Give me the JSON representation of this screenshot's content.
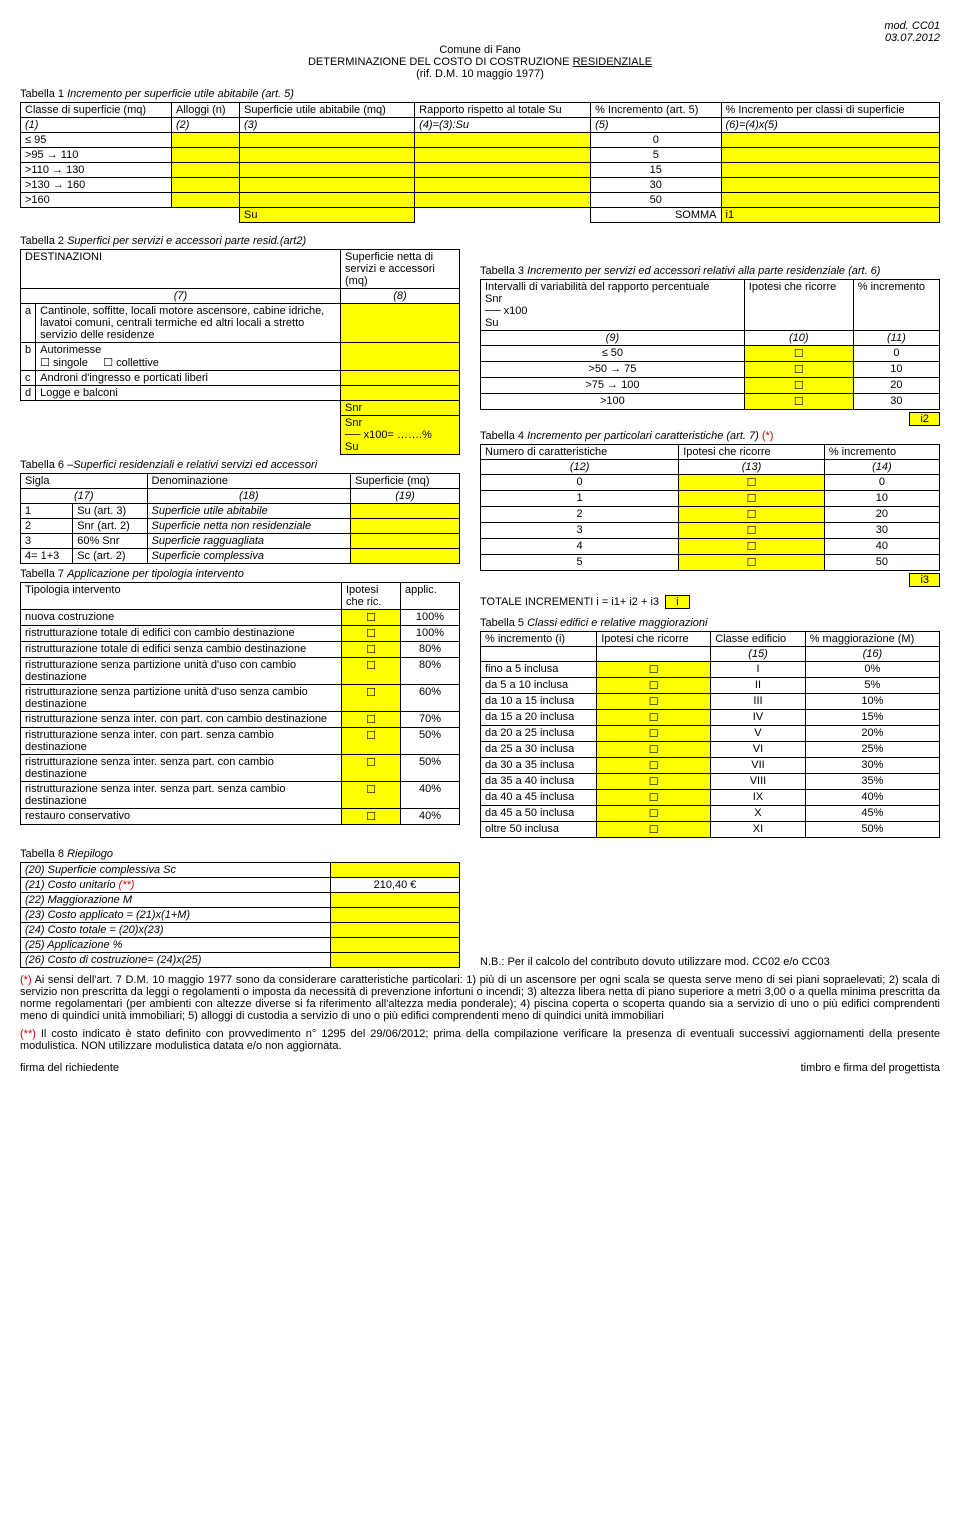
{
  "meta": {
    "mod": "mod. CC01",
    "date": "03.07.2012"
  },
  "title": {
    "l1a": "Comune di Fano",
    "l2a": "DETERMINAZIONE DEL COSTO DI COSTRUZIONE ",
    "l2b": "RESIDENZIALE",
    "l3": "(rif. D.M. 10 maggio 1977)"
  },
  "t1": {
    "caption_pre": "Tabella 1 ",
    "caption_it": "Incremento per superficie utile abitabile (art. 5)",
    "h": {
      "c1": "Classe di superficie (mq)",
      "c2": "Alloggi (n)",
      "c3": "Superficie utile abitabile (mq)",
      "c4": "Rapporto rispetto al totale Su",
      "c5": "% Incremento (art. 5)",
      "c6": "% Incremento per classi di superficie"
    },
    "sub": {
      "c1": "(1)",
      "c2": "(2)",
      "c3": "(3)",
      "c4": "(4)=(3):Su",
      "c5": "(5)",
      "c6": "(6)=(4)x(5)"
    },
    "rows": [
      {
        "cls": "≤ 95",
        "pct": "0"
      },
      {
        "cls": ">95 → 110",
        "pct": "5"
      },
      {
        "cls": ">110 → 130",
        "pct": "15"
      },
      {
        "cls": ">130 → 160",
        "pct": "30"
      },
      {
        "cls": ">160",
        "pct": "50"
      }
    ],
    "su": "Su",
    "somma": "SOMMA",
    "i1": "i1"
  },
  "t2": {
    "caption_pre": "Tabella 2 ",
    "caption_it": "Superfici per servizi e accessori parte resid.(art2)",
    "h1": "DESTINAZIONI",
    "h2": "Superficie netta di servizi e accessori (mq)",
    "sub1": "(7)",
    "sub2": "(8)",
    "rows": {
      "a": {
        "k": "a",
        "v": "Cantinole, soffitte, locali motore ascensore, cabine idriche, lavatoi comuni, centrali termiche ed altri locali a stretto servizio delle residenze"
      },
      "b": {
        "k": "b",
        "v": "Autorimesse",
        "opt1": "☐ singole",
        "opt2": "☐ collettive"
      },
      "c": {
        "k": "c",
        "v": "Androni d'ingresso e porticati liberi"
      },
      "d": {
        "k": "d",
        "v": "Logge e balconi"
      }
    },
    "snr1": "Snr",
    "snr2a": "Snr",
    "snr2b": "── x100= …….%",
    "snr2c": "Su"
  },
  "t3": {
    "caption_pre": "Tabella 3 ",
    "caption_it": "Incremento per servizi ed accessori relativi alla parte residenziale (art. 6)",
    "h1": "Intervalli di variabilità del rapporto percentuale",
    "h1b": "Snr\n── x100\nSu",
    "h2": "Ipotesi che ricorre",
    "h3": "% incremento",
    "sub": {
      "c1": "(9)",
      "c2": "(10)",
      "c3": "(11)"
    },
    "rows": [
      {
        "r": "≤ 50",
        "p": "0"
      },
      {
        "r": ">50 → 75",
        "p": "10"
      },
      {
        "r": ">75 → 100",
        "p": "20"
      },
      {
        "r": ">100",
        "p": "30"
      }
    ],
    "i2": "i2"
  },
  "t6": {
    "caption_pre": "Tabella 6 –",
    "caption_it": "Superfici residenziali e relativi servizi ed accessori",
    "h": {
      "c1": "Sigla",
      "c2": "Denominazione",
      "c3": "Superficie (mq)"
    },
    "sub": {
      "c1": "(17)",
      "c2": "(18)",
      "c3": "(19)"
    },
    "rows": [
      {
        "n": "1",
        "s": "Su (art. 3)",
        "d": "Superficie utile abitabile"
      },
      {
        "n": "2",
        "s": "Snr (art. 2)",
        "d": "Superficie netta non residenziale"
      },
      {
        "n": "3",
        "s": "60% Snr",
        "d": "Superficie ragguagliata"
      },
      {
        "n": "4= 1+3",
        "s": "Sc (art. 2)",
        "d": "Superficie complessiva"
      }
    ]
  },
  "t4": {
    "caption_pre": "Tabella 4 ",
    "caption_it": "Incremento per particolari caratteristiche (art. 7) ",
    "star": "(*)",
    "h": {
      "c1": "Numero di caratteristiche",
      "c2": "Ipotesi che ricorre",
      "c3": "% incremento"
    },
    "sub": {
      "c1": "(12)",
      "c2": "(13)",
      "c3": "(14)"
    },
    "rows": [
      {
        "n": "0",
        "p": "0"
      },
      {
        "n": "1",
        "p": "10"
      },
      {
        "n": "2",
        "p": "20"
      },
      {
        "n": "3",
        "p": "30"
      },
      {
        "n": "4",
        "p": "40"
      },
      {
        "n": "5",
        "p": "50"
      }
    ],
    "i3": "i3"
  },
  "t7": {
    "caption_pre": "Tabella 7 ",
    "caption_it": "Applicazione per tipologia intervento",
    "h": {
      "c1": "Tipologia intervento",
      "c2": "Ipotesi che ric.",
      "c3": "applic."
    },
    "rows": [
      {
        "t": "nuova costruzione",
        "p": "100%"
      },
      {
        "t": "ristrutturazione totale di edifici con cambio destinazione",
        "p": "100%"
      },
      {
        "t": "ristrutturazione totale di edifici senza cambio destinazione",
        "p": "80%"
      },
      {
        "t": "ristrutturazione senza partizione unità d'uso con cambio destinazione",
        "p": "80%"
      },
      {
        "t": "ristrutturazione senza partizione unità d'uso senza cambio destinazione",
        "p": "60%"
      },
      {
        "t": "ristrutturazione senza inter. con part. con cambio destinazione",
        "p": "70%"
      },
      {
        "t": "ristrutturazione senza inter. con part. senza cambio destinazione",
        "p": "50%"
      },
      {
        "t": "ristrutturazione senza inter. senza part. con cambio destinazione",
        "p": "50%"
      },
      {
        "t": "ristrutturazione senza inter. senza part. senza cambio destinazione",
        "p": "40%"
      },
      {
        "t": "restauro conservativo",
        "p": "40%"
      }
    ]
  },
  "tot": {
    "label": "TOTALE INCREMENTI i = i1+ i2 + i3",
    "i": "i"
  },
  "t5": {
    "caption_pre": "Tabella 5 ",
    "caption_it": "Classi edifici e relative maggiorazioni",
    "h": {
      "c1": "% incremento (i)",
      "c2": "Ipotesi che ricorre",
      "c3": "Classe edificio",
      "c4": "% maggiorazione (M)"
    },
    "sub": {
      "c3": "(15)",
      "c4": "(16)"
    },
    "rows": [
      {
        "r": "fino a 5 inclusa",
        "c": "I",
        "m": "0%"
      },
      {
        "r": "da 5 a 10 inclusa",
        "c": "II",
        "m": "5%"
      },
      {
        "r": "da 10 a 15 inclusa",
        "c": "III",
        "m": "10%"
      },
      {
        "r": "da 15 a 20 inclusa",
        "c": "IV",
        "m": "15%"
      },
      {
        "r": "da 20 a 25 inclusa",
        "c": "V",
        "m": "20%"
      },
      {
        "r": "da 25 a 30 inclusa",
        "c": "VI",
        "m": "25%"
      },
      {
        "r": "da 30 a 35 inclusa",
        "c": "VII",
        "m": "30%"
      },
      {
        "r": "da 35 a 40 inclusa",
        "c": "VIII",
        "m": "35%"
      },
      {
        "r": "da 40 a 45 inclusa",
        "c": "IX",
        "m": "40%"
      },
      {
        "r": "da 45 a 50 inclusa",
        "c": "X",
        "m": "45%"
      },
      {
        "r": "oltre 50 inclusa",
        "c": "XI",
        "m": "50%"
      }
    ]
  },
  "t8": {
    "caption_pre": "Tabella 8 ",
    "caption_it": "Riepilogo",
    "rows": {
      "r20": "(20) Superficie complessiva Sc",
      "r21a": "(21) Costo unitario ",
      "r21b": "(**)",
      "r21v": "210,40 €",
      "r22": "(22) Maggiorazione M",
      "r23": "(23) Costo applicato = (21)x(1+M)",
      "r24": "(24) Costo totale = (20)x(23)",
      "r25": "(25) Applicazione %",
      "r26": "(26) Costo di costruzione= (24)x(25)"
    }
  },
  "nb": "N.B.: Per il calcolo del contributo dovuto utilizzare mod. CC02 e/o CC03",
  "note1": {
    "pre": "(*) ",
    "text": "Ai sensi dell'art. 7 D.M. 10 maggio 1977 sono da considerare caratteristiche particolari: 1) più di un ascensore per ogni scala se questa serve meno di sei piani sopraelevati; 2) scala di servizio non prescritta da leggi o regolamenti o imposta da necessità di prevenzione infortuni o incendi; 3) altezza libera netta di piano superiore a metri 3,00 o a quella minima prescritta da norme regolamentari (per ambienti con altezze diverse si fa riferimento all'altezza media ponderale); 4) piscina coperta o scoperta quando sia a servizio di uno o più edifici comprendenti meno di quindici unità immobiliari; 5) alloggi di custodia a servizio di uno o più edifici comprendenti meno di quindici unità immobiliari"
  },
  "note2": {
    "pre": "(**) ",
    "text": "Il costo indicato è stato definito con provvedimento n° 1295 del 29/06/2012; prima della compilazione verificare la presenza di eventuali successivi aggiornamenti della presente modulistica. NON utilizzare modulistica datata e/o non aggiornata."
  },
  "footer": {
    "left": "firma del richiedente",
    "right": "timbro e firma del progettista"
  },
  "chk": "☐"
}
